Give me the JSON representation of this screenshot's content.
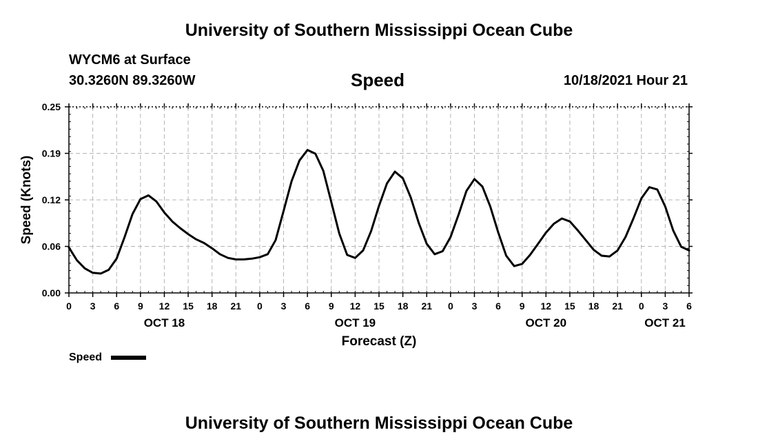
{
  "header": {
    "title": "University of Southern Mississippi Ocean Cube",
    "station": "WYCM6 at Surface",
    "coords": "30.3260N  89.3260W",
    "variable": "Speed",
    "timestamp": "10/18/2021 Hour 21"
  },
  "footer": {
    "title": "University of Southern Mississippi Ocean Cube"
  },
  "legend": {
    "label": "Speed",
    "color": "#000000"
  },
  "chart_data": {
    "type": "line",
    "title": "Speed",
    "xlabel": "Forecast (Z)",
    "ylabel": "Speed (Knots)",
    "ylim": [
      0,
      0.25
    ],
    "yticks": [
      "0.00",
      "0.06",
      "0.12",
      "0.19",
      "0.25"
    ],
    "ytick_values": [
      0,
      0.0625,
      0.125,
      0.1875,
      0.25
    ],
    "x_unit": "hours",
    "x_range": [
      0,
      78
    ],
    "xticks": [
      "0",
      "3",
      "6",
      "9",
      "12",
      "15",
      "18",
      "21",
      "0",
      "3",
      "6",
      "9",
      "12",
      "15",
      "18",
      "21",
      "0",
      "3",
      "6",
      "9",
      "12",
      "15",
      "18",
      "21",
      "0",
      "3",
      "6"
    ],
    "day_labels": [
      {
        "label": "OCT 18",
        "hour": 12
      },
      {
        "label": "OCT 19",
        "hour": 36
      },
      {
        "label": "OCT 20",
        "hour": 60
      },
      {
        "label": "OCT 21",
        "hour": 78
      }
    ],
    "grid": true,
    "legend_position": "bottom-left",
    "series": [
      {
        "name": "Speed",
        "color": "#000000",
        "x": [
          0,
          1,
          2,
          3,
          4,
          5,
          6,
          7,
          8,
          9,
          10,
          11,
          12,
          13,
          14,
          15,
          16,
          17,
          18,
          19,
          20,
          21,
          22,
          23,
          24,
          25,
          26,
          27,
          28,
          29,
          30,
          31,
          32,
          33,
          34,
          35,
          36,
          37,
          38,
          39,
          40,
          41,
          42,
          43,
          44,
          45,
          46,
          47,
          48,
          49,
          50,
          51,
          52,
          53,
          54,
          55,
          56,
          57,
          58,
          59,
          60,
          61,
          62,
          63,
          64,
          65,
          66,
          67,
          68,
          69,
          70,
          71,
          72,
          73,
          74,
          75,
          76,
          77,
          78
        ],
        "values": [
          0.061,
          0.044,
          0.033,
          0.027,
          0.026,
          0.031,
          0.046,
          0.075,
          0.106,
          0.126,
          0.131,
          0.123,
          0.108,
          0.096,
          0.087,
          0.079,
          0.072,
          0.067,
          0.06,
          0.052,
          0.047,
          0.045,
          0.045,
          0.046,
          0.048,
          0.052,
          0.071,
          0.11,
          0.15,
          0.178,
          0.192,
          0.187,
          0.164,
          0.122,
          0.08,
          0.051,
          0.047,
          0.057,
          0.083,
          0.117,
          0.147,
          0.163,
          0.154,
          0.128,
          0.094,
          0.066,
          0.052,
          0.056,
          0.075,
          0.105,
          0.137,
          0.153,
          0.143,
          0.116,
          0.081,
          0.05,
          0.036,
          0.039,
          0.051,
          0.066,
          0.081,
          0.093,
          0.1,
          0.096,
          0.084,
          0.071,
          0.058,
          0.05,
          0.049,
          0.057,
          0.075,
          0.1,
          0.127,
          0.142,
          0.139,
          0.116,
          0.084,
          0.062,
          0.057
        ]
      }
    ]
  }
}
